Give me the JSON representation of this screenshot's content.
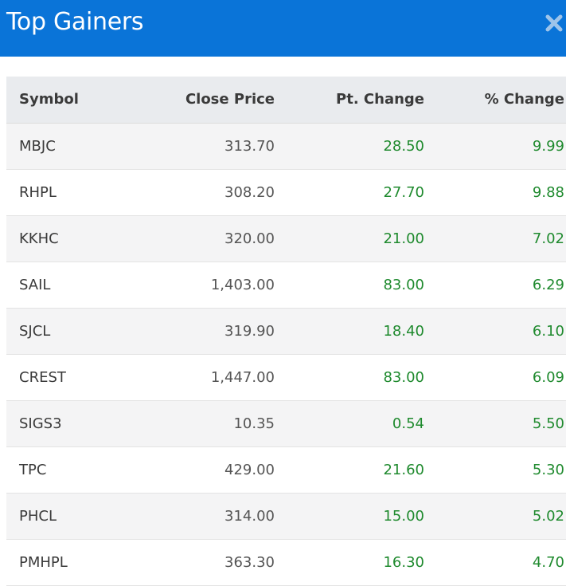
{
  "header": {
    "title": "Top Gainers",
    "close_icon": "close-icon"
  },
  "table": {
    "columns": [
      "Symbol",
      "Close Price",
      "Pt. Change",
      "% Change"
    ],
    "rows": [
      {
        "symbol": "MBJC",
        "close": "313.70",
        "pt": "28.50",
        "pct": "9.99"
      },
      {
        "symbol": "RHPL",
        "close": "308.20",
        "pt": "27.70",
        "pct": "9.88"
      },
      {
        "symbol": "KKHC",
        "close": "320.00",
        "pt": "21.00",
        "pct": "7.02"
      },
      {
        "symbol": "SAIL",
        "close": "1,403.00",
        "pt": "83.00",
        "pct": "6.29"
      },
      {
        "symbol": "SJCL",
        "close": "319.90",
        "pt": "18.40",
        "pct": "6.10"
      },
      {
        "symbol": "CREST",
        "close": "1,447.00",
        "pt": "83.00",
        "pct": "6.09"
      },
      {
        "symbol": "SIGS3",
        "close": "10.35",
        "pt": "0.54",
        "pct": "5.50"
      },
      {
        "symbol": "TPC",
        "close": "429.00",
        "pt": "21.60",
        "pct": "5.30"
      },
      {
        "symbol": "PHCL",
        "close": "314.00",
        "pt": "15.00",
        "pct": "5.02"
      },
      {
        "symbol": "PMHPL",
        "close": "363.30",
        "pt": "16.30",
        "pct": "4.70"
      }
    ]
  },
  "colors": {
    "header_bg": "#0a74d8",
    "gain": "#1f8a2e",
    "row_alt": "#f4f4f5",
    "thead_bg": "#e9ebee"
  }
}
